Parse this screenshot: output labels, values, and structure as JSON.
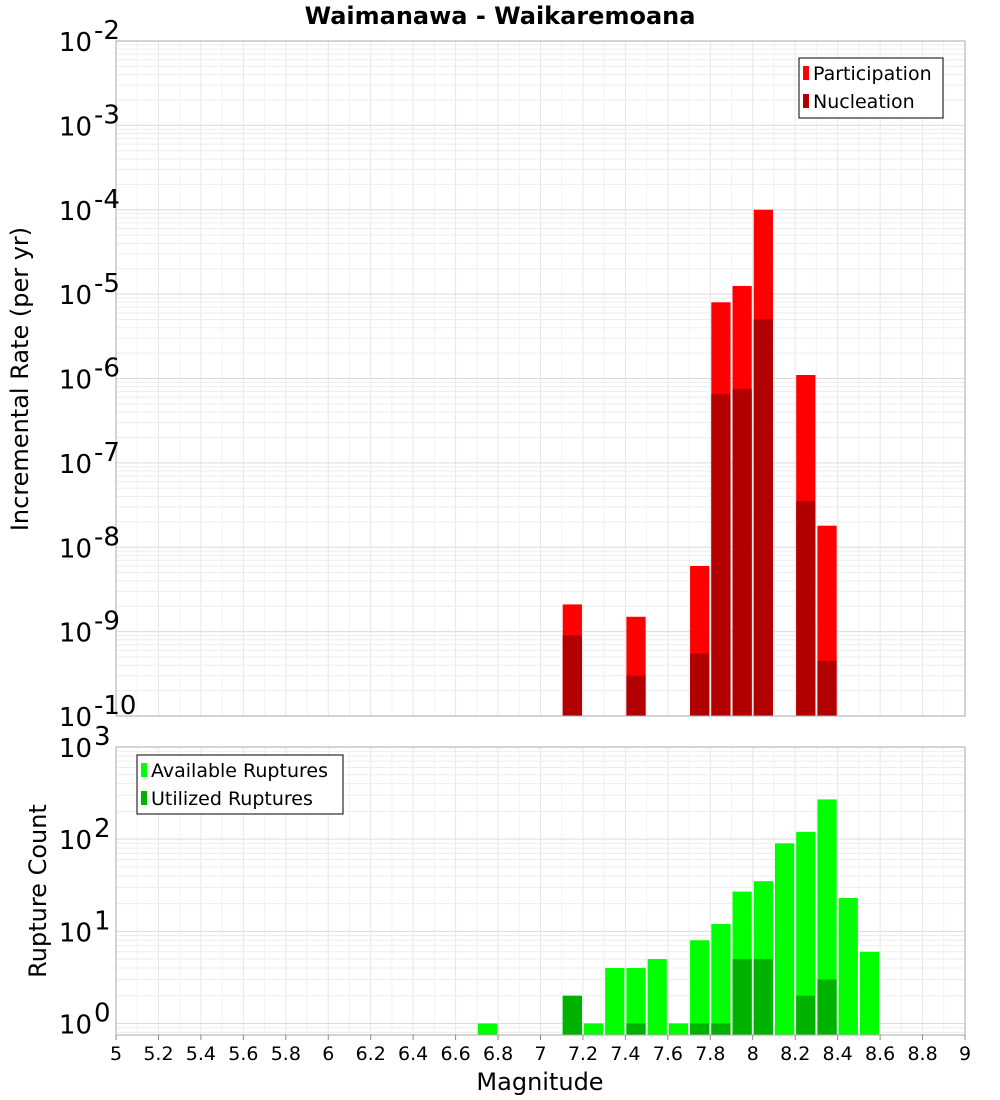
{
  "chart_data": {
    "title": "Waimanawa - Waikaremoana",
    "xlabel": "Magnitude",
    "x_range": [
      5,
      9
    ],
    "x_ticks": [
      "5",
      "5.2",
      "5.4",
      "5.6",
      "5.8",
      "6",
      "6.2",
      "6.4",
      "6.6",
      "6.8",
      "7",
      "7.2",
      "7.4",
      "7.6",
      "7.8",
      "8",
      "8.2",
      "8.4",
      "8.6",
      "8.8",
      "9"
    ],
    "bin_width": 0.1,
    "panels": [
      {
        "id": "rate",
        "type": "bar",
        "scale": "log",
        "ylabel": "Incremental Rate (per yr)",
        "ylim": [
          1e-10,
          0.01
        ],
        "y_ticks": [
          {
            "base": "10",
            "exp": "-2"
          },
          {
            "base": "10",
            "exp": "-3"
          },
          {
            "base": "10",
            "exp": "-4"
          },
          {
            "base": "10",
            "exp": "-5"
          },
          {
            "base": "10",
            "exp": "-6"
          },
          {
            "base": "10",
            "exp": "-7"
          },
          {
            "base": "10",
            "exp": "-8"
          },
          {
            "base": "10",
            "exp": "-9"
          },
          {
            "base": "10",
            "exp": "-10"
          }
        ],
        "legend_position": "top-right",
        "series": [
          {
            "name": "Participation",
            "color": "#ff0000",
            "points": [
              {
                "x": 7.15,
                "y": 2.1e-09
              },
              {
                "x": 7.45,
                "y": 1.5e-09
              },
              {
                "x": 7.75,
                "y": 6e-09
              },
              {
                "x": 7.85,
                "y": 8e-06
              },
              {
                "x": 7.95,
                "y": 1.25e-05
              },
              {
                "x": 8.05,
                "y": 0.0001
              },
              {
                "x": 8.25,
                "y": 1.1e-06
              },
              {
                "x": 8.35,
                "y": 1.8e-08
              }
            ]
          },
          {
            "name": "Nucleation",
            "color": "#b20000",
            "points": [
              {
                "x": 7.15,
                "y": 9e-10
              },
              {
                "x": 7.45,
                "y": 3e-10
              },
              {
                "x": 7.75,
                "y": 5.5e-10
              },
              {
                "x": 7.85,
                "y": 6.5e-07
              },
              {
                "x": 7.95,
                "y": 7.5e-07
              },
              {
                "x": 8.05,
                "y": 5e-06
              },
              {
                "x": 8.25,
                "y": 3.5e-08
              },
              {
                "x": 8.35,
                "y": 4.5e-10
              }
            ]
          }
        ]
      },
      {
        "id": "count",
        "type": "bar",
        "scale": "log",
        "ylabel": "Rupture Count",
        "ylim": [
          0.75,
          1000
        ],
        "y_ticks": [
          {
            "value": 1000,
            "base": "10",
            "exp": "3"
          },
          {
            "value": 100,
            "base": "10",
            "exp": "2"
          },
          {
            "value": 10,
            "base": "10",
            "exp": "1"
          },
          {
            "value": 1,
            "base": "10",
            "exp": "0"
          }
        ],
        "legend_position": "top-left",
        "series": [
          {
            "name": "Available Ruptures",
            "color": "#00ff00",
            "points": [
              {
                "x": 6.75,
                "y": 1
              },
              {
                "x": 7.15,
                "y": 2
              },
              {
                "x": 7.25,
                "y": 1
              },
              {
                "x": 7.35,
                "y": 4
              },
              {
                "x": 7.45,
                "y": 4
              },
              {
                "x": 7.55,
                "y": 5
              },
              {
                "x": 7.65,
                "y": 1
              },
              {
                "x": 7.75,
                "y": 8
              },
              {
                "x": 7.85,
                "y": 12
              },
              {
                "x": 7.95,
                "y": 27
              },
              {
                "x": 8.05,
                "y": 35
              },
              {
                "x": 8.15,
                "y": 90
              },
              {
                "x": 8.25,
                "y": 120
              },
              {
                "x": 8.35,
                "y": 270
              },
              {
                "x": 8.45,
                "y": 23
              },
              {
                "x": 8.55,
                "y": 6
              }
            ]
          },
          {
            "name": "Utilized Ruptures",
            "color": "#00b200",
            "points": [
              {
                "x": 7.15,
                "y": 2
              },
              {
                "x": 7.45,
                "y": 1
              },
              {
                "x": 7.75,
                "y": 1
              },
              {
                "x": 7.85,
                "y": 1
              },
              {
                "x": 7.95,
                "y": 5
              },
              {
                "x": 8.05,
                "y": 5
              },
              {
                "x": 8.25,
                "y": 2
              },
              {
                "x": 8.35,
                "y": 3
              }
            ]
          }
        ]
      }
    ]
  }
}
